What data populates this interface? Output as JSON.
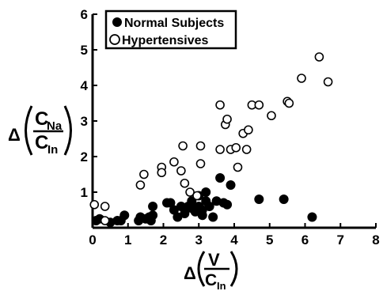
{
  "chart_data": {
    "type": "scatter",
    "xlim": [
      0,
      8
    ],
    "ylim": [
      0,
      6
    ],
    "x_ticks": [
      "0",
      "1",
      "2",
      "3",
      "4",
      "5",
      "6",
      "7",
      "8"
    ],
    "y_ticks": [
      "1",
      "2",
      "3",
      "4",
      "5",
      "6"
    ],
    "xlabel": {
      "delta": "Δ",
      "numerator": "V",
      "denominator_main": "C",
      "denominator_sub": "In"
    },
    "ylabel": {
      "delta": "Δ",
      "numerator_main": "C",
      "numerator_sub": "Na",
      "denominator_main": "C",
      "denominator_sub": "In"
    },
    "legend": {
      "position": "top-left"
    },
    "series": [
      {
        "name": "Normal Subjects",
        "marker": "filled-circle",
        "color": "#000000",
        "points": [
          [
            0.1,
            0.2
          ],
          [
            0.2,
            0.25
          ],
          [
            0.5,
            0.15
          ],
          [
            0.7,
            0.2
          ],
          [
            0.8,
            0.2
          ],
          [
            0.9,
            0.35
          ],
          [
            1.3,
            0.2
          ],
          [
            1.35,
            0.3
          ],
          [
            1.5,
            0.25
          ],
          [
            1.6,
            0.3
          ],
          [
            1.65,
            0.2
          ],
          [
            1.7,
            0.35
          ],
          [
            1.7,
            0.6
          ],
          [
            2.1,
            0.7
          ],
          [
            2.2,
            0.7
          ],
          [
            2.3,
            0.5
          ],
          [
            2.4,
            0.3
          ],
          [
            2.5,
            0.6
          ],
          [
            2.6,
            0.4
          ],
          [
            2.7,
            0.6
          ],
          [
            2.8,
            0.55
          ],
          [
            2.8,
            0.75
          ],
          [
            2.9,
            0.45
          ],
          [
            3.0,
            0.9
          ],
          [
            3.0,
            0.6
          ],
          [
            3.1,
            0.35
          ],
          [
            3.1,
            0.5
          ],
          [
            3.2,
            1.0
          ],
          [
            3.2,
            0.75
          ],
          [
            3.3,
            0.6
          ],
          [
            3.4,
            0.3
          ],
          [
            3.5,
            0.75
          ],
          [
            3.6,
            1.4
          ],
          [
            3.7,
            0.7
          ],
          [
            3.8,
            0.65
          ],
          [
            3.9,
            1.2
          ],
          [
            4.7,
            0.8
          ],
          [
            5.4,
            0.8
          ],
          [
            6.2,
            0.3
          ]
        ]
      },
      {
        "name": "Hypertensives",
        "marker": "open-circle",
        "color": "#000000",
        "points": [
          [
            0.05,
            0.65
          ],
          [
            0.35,
            0.2
          ],
          [
            0.35,
            0.6
          ],
          [
            1.35,
            1.2
          ],
          [
            1.45,
            1.5
          ],
          [
            1.95,
            1.7
          ],
          [
            1.95,
            1.55
          ],
          [
            2.3,
            1.85
          ],
          [
            2.5,
            1.6
          ],
          [
            2.55,
            2.3
          ],
          [
            2.6,
            1.25
          ],
          [
            2.75,
            1.0
          ],
          [
            2.95,
            0.9
          ],
          [
            3.05,
            2.3
          ],
          [
            3.05,
            1.8
          ],
          [
            3.6,
            3.45
          ],
          [
            3.6,
            2.2
          ],
          [
            3.75,
            2.9
          ],
          [
            3.8,
            3.05
          ],
          [
            3.9,
            2.2
          ],
          [
            4.05,
            2.25
          ],
          [
            4.1,
            1.7
          ],
          [
            4.25,
            2.65
          ],
          [
            4.35,
            2.2
          ],
          [
            4.4,
            2.75
          ],
          [
            4.5,
            3.45
          ],
          [
            4.7,
            3.45
          ],
          [
            5.05,
            3.15
          ],
          [
            5.5,
            3.55
          ],
          [
            5.55,
            3.5
          ],
          [
            5.9,
            4.2
          ],
          [
            6.4,
            4.8
          ],
          [
            6.65,
            4.1
          ]
        ]
      }
    ]
  }
}
